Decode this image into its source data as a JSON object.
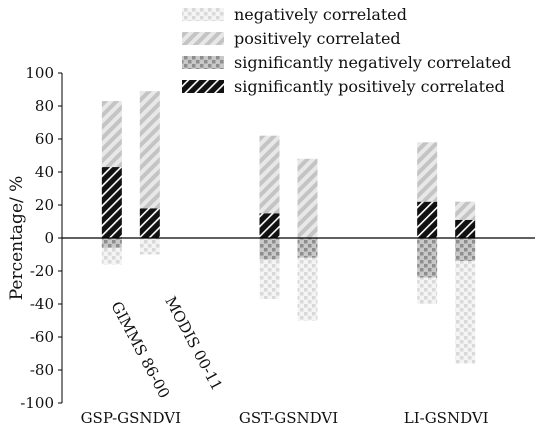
{
  "chart_data": {
    "type": "bar",
    "stacked": true,
    "ylabel": "Percentage/ %",
    "xlabel": "",
    "ylim": [
      -100,
      100
    ],
    "y_ticks": [
      -100,
      -80,
      -60,
      -40,
      -20,
      0,
      20,
      40,
      60,
      80,
      100
    ],
    "categories": [
      "GSP-GSNDVI",
      "GST-GSNDVI",
      "LI-GSNDVI"
    ],
    "sub_groups": [
      "GIMMS 86-00",
      "MODIS 00-11"
    ],
    "legend_position": "top-right",
    "legend": [
      {
        "key": "neg",
        "label": "negatively correlated"
      },
      {
        "key": "pos",
        "label": "positively correlated"
      },
      {
        "key": "signeg",
        "label": "significantly negatively correlated"
      },
      {
        "key": "sigpos",
        "label": "significantly positively correlated"
      }
    ],
    "series": [
      {
        "key": "sigpos",
        "name": "significantly positively correlated",
        "values": [
          [
            43,
            18
          ],
          [
            15,
            0
          ],
          [
            22,
            11
          ]
        ]
      },
      {
        "key": "pos",
        "name": "positively correlated",
        "values": [
          [
            40,
            71
          ],
          [
            47,
            48
          ],
          [
            36,
            11
          ]
        ]
      },
      {
        "key": "signeg",
        "name": "significantly negatively correlated",
        "values": [
          [
            -6,
            0
          ],
          [
            -13,
            -12
          ],
          [
            -24,
            -14
          ]
        ]
      },
      {
        "key": "neg",
        "name": "negatively correlated",
        "values": [
          [
            -10,
            -10
          ],
          [
            -24,
            -38
          ],
          [
            -16,
            -62
          ]
        ]
      }
    ],
    "colors": {
      "neg": "#e3e3e3",
      "pos": "#cfcfcf",
      "signeg": "#a9a9a9",
      "sigpos": "#111111"
    }
  }
}
